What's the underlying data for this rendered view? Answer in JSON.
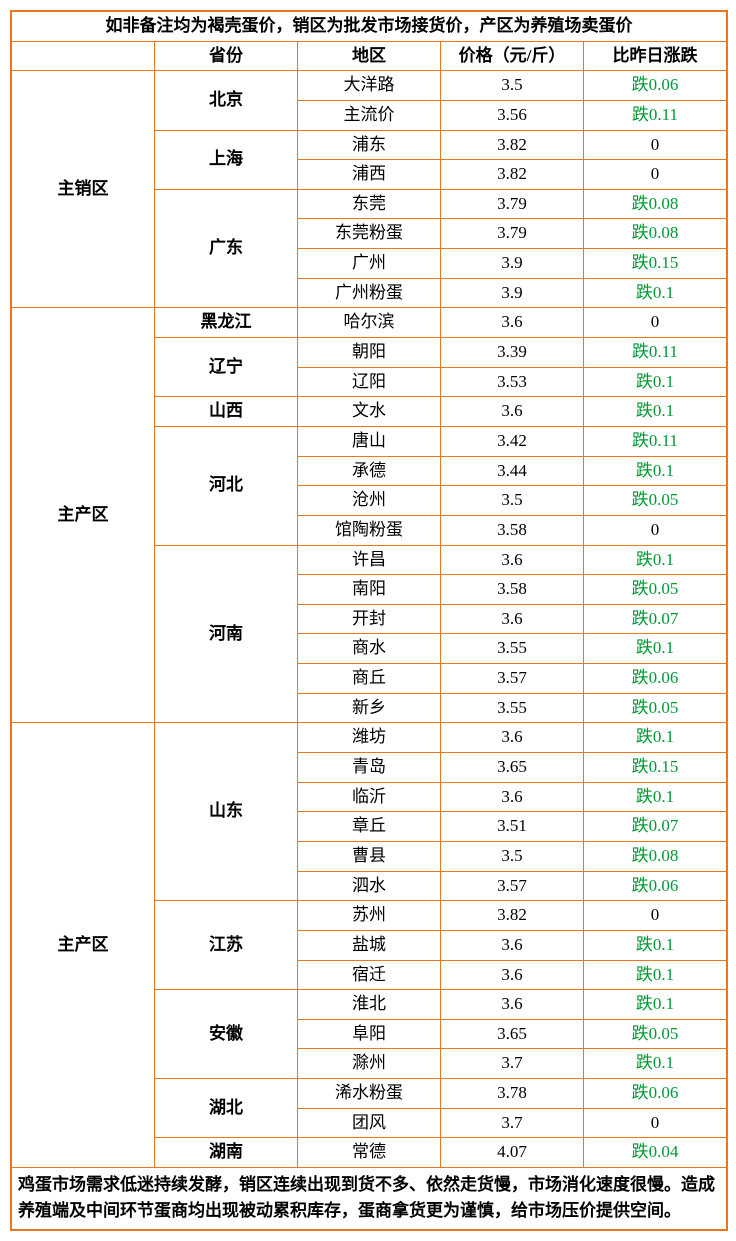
{
  "title": "如非备注均为褐壳蛋价，销区为批发市场接货价，产区为养殖场卖蛋价",
  "headers": {
    "province": "省份",
    "area": "地区",
    "price": "价格（元/斤）",
    "change": "比昨日涨跌"
  },
  "footnote": "鸡蛋市场需求低迷持续发酵，销区连续出现到货不多、依然走货慢，市场消化速度很慢。造成养殖端及中间环节蛋商均出现被动累积库存，蛋商拿货更为谨慎，给市场压价提供空间。",
  "zoneLabels": {
    "sales": "主销区",
    "prod1": "主产区",
    "prod2": "主产区"
  },
  "rows": [
    {
      "area": "大洋路",
      "price": "3.5",
      "change": "跌0.06",
      "dir": "down"
    },
    {
      "area": "主流价",
      "price": "3.56",
      "change": "跌0.11",
      "dir": "down"
    },
    {
      "area": "浦东",
      "price": "3.82",
      "change": "0",
      "dir": "flat"
    },
    {
      "area": "浦西",
      "price": "3.82",
      "change": "0",
      "dir": "flat"
    },
    {
      "area": "东莞",
      "price": "3.79",
      "change": "跌0.08",
      "dir": "down"
    },
    {
      "area": "东莞粉蛋",
      "price": "3.79",
      "change": "跌0.08",
      "dir": "down"
    },
    {
      "area": "广州",
      "price": "3.9",
      "change": "跌0.15",
      "dir": "down"
    },
    {
      "area": "广州粉蛋",
      "price": "3.9",
      "change": "跌0.1",
      "dir": "down"
    },
    {
      "area": "哈尔滨",
      "price": "3.6",
      "change": "0",
      "dir": "flat"
    },
    {
      "area": "朝阳",
      "price": "3.39",
      "change": "跌0.11",
      "dir": "down"
    },
    {
      "area": "辽阳",
      "price": "3.53",
      "change": "跌0.1",
      "dir": "down"
    },
    {
      "area": "文水",
      "price": "3.6",
      "change": "跌0.1",
      "dir": "down"
    },
    {
      "area": "唐山",
      "price": "3.42",
      "change": "跌0.11",
      "dir": "down"
    },
    {
      "area": "承德",
      "price": "3.44",
      "change": "跌0.1",
      "dir": "down"
    },
    {
      "area": "沧州",
      "price": "3.5",
      "change": "跌0.05",
      "dir": "down"
    },
    {
      "area": "馆陶粉蛋",
      "price": "3.58",
      "change": "0",
      "dir": "flat"
    },
    {
      "area": "许昌",
      "price": "3.6",
      "change": "跌0.1",
      "dir": "down"
    },
    {
      "area": "南阳",
      "price": "3.58",
      "change": "跌0.05",
      "dir": "down"
    },
    {
      "area": "开封",
      "price": "3.6",
      "change": "跌0.07",
      "dir": "down"
    },
    {
      "area": "商水",
      "price": "3.55",
      "change": "跌0.1",
      "dir": "down"
    },
    {
      "area": "商丘",
      "price": "3.57",
      "change": "跌0.06",
      "dir": "down"
    },
    {
      "area": "新乡",
      "price": "3.55",
      "change": "跌0.05",
      "dir": "down"
    },
    {
      "area": "潍坊",
      "price": "3.6",
      "change": "跌0.1",
      "dir": "down"
    },
    {
      "area": "青岛",
      "price": "3.65",
      "change": "跌0.15",
      "dir": "down"
    },
    {
      "area": "临沂",
      "price": "3.6",
      "change": "跌0.1",
      "dir": "down"
    },
    {
      "area": "章丘",
      "price": "3.51",
      "change": "跌0.07",
      "dir": "down"
    },
    {
      "area": "曹县",
      "price": "3.5",
      "change": "跌0.08",
      "dir": "down"
    },
    {
      "area": "泗水",
      "price": "3.57",
      "change": "跌0.06",
      "dir": "down"
    },
    {
      "area": "苏州",
      "price": "3.82",
      "change": "0",
      "dir": "flat"
    },
    {
      "area": "盐城",
      "price": "3.6",
      "change": "跌0.1",
      "dir": "down"
    },
    {
      "area": "宿迁",
      "price": "3.6",
      "change": "跌0.1",
      "dir": "down"
    },
    {
      "area": "淮北",
      "price": "3.6",
      "change": "跌0.1",
      "dir": "down"
    },
    {
      "area": "阜阳",
      "price": "3.65",
      "change": "跌0.05",
      "dir": "down"
    },
    {
      "area": "滁州",
      "price": "3.7",
      "change": "跌0.1",
      "dir": "down"
    },
    {
      "area": "浠水粉蛋",
      "price": "3.78",
      "change": "跌0.06",
      "dir": "down"
    },
    {
      "area": "团风",
      "price": "3.7",
      "change": "0",
      "dir": "flat"
    },
    {
      "area": "常德",
      "price": "4.07",
      "change": "跌0.04",
      "dir": "down"
    }
  ],
  "provinces": {
    "beijing": "北京",
    "shanghai": "上海",
    "guangdong": "广东",
    "heilongjiang": "黑龙江",
    "liaoning": "辽宁",
    "shanxi": "山西",
    "hebei": "河北",
    "henan": "河南",
    "shandong": "山东",
    "jiangsu": "江苏",
    "anhui": "安徽",
    "hubei": "湖北",
    "hunan": "湖南"
  }
}
